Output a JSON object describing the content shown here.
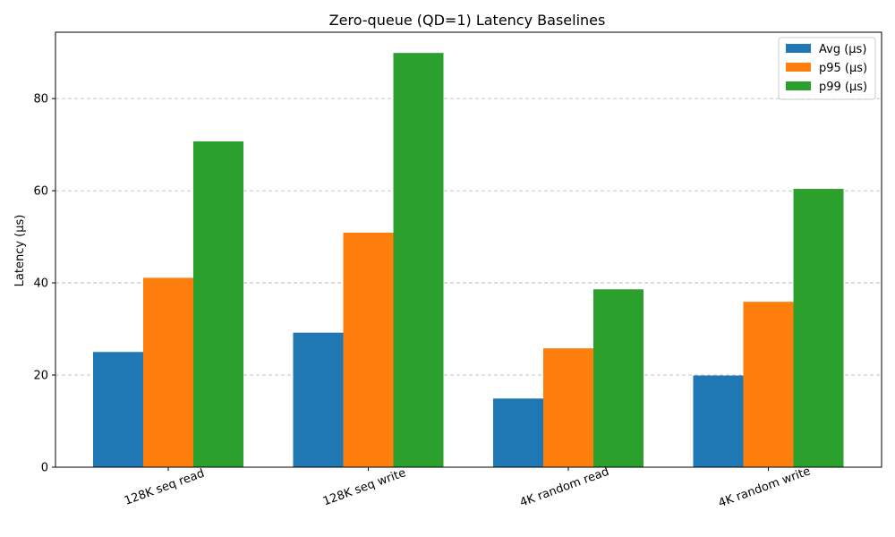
{
  "chart_data": {
    "type": "bar",
    "title": "Zero-queue (QD=1) Latency Baselines",
    "xlabel": "",
    "ylabel": "Latency (µs)",
    "categories": [
      "128K seq read",
      "128K seq write",
      "4K random read",
      "4K random write"
    ],
    "series": [
      {
        "name": "Avg (µs)",
        "color": "#1f77b4",
        "values": [
          25.0,
          29.2,
          14.9,
          19.9
        ]
      },
      {
        "name": "p95 (µs)",
        "color": "#ff7f0e",
        "values": [
          41.1,
          50.9,
          25.8,
          35.9
        ]
      },
      {
        "name": "p99 (µs)",
        "color": "#2ca02c",
        "values": [
          70.7,
          89.9,
          38.6,
          60.4
        ]
      }
    ],
    "ylim": [
      0,
      94.4
    ],
    "yticks": [
      0,
      20,
      40,
      60,
      80
    ],
    "grid": "y",
    "legend_position": "top-right"
  }
}
